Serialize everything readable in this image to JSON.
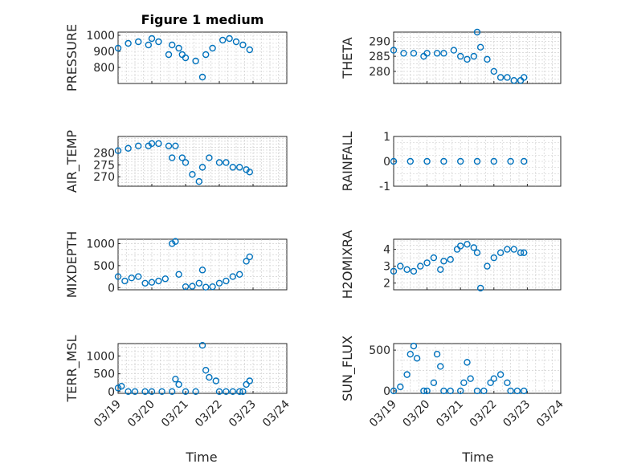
{
  "title": "Figure 1 medium",
  "xlabel": "Time",
  "x_ticks": [
    "03/19",
    "03/20",
    "03/21",
    "03/22",
    "03/23",
    "03/24"
  ],
  "chart_data": [
    {
      "type": "scatter",
      "ylabel": "PRESSURE",
      "yticks": [
        "800",
        "900",
        "1000"
      ],
      "ylim": [
        700,
        1020
      ],
      "xlim": [
        "03/19",
        "03/24"
      ],
      "grid": true,
      "x": [
        0,
        0.3,
        0.6,
        0.9,
        1.0,
        1.2,
        1.5,
        1.6,
        1.8,
        1.9,
        2.0,
        2.3,
        2.5,
        2.6,
        2.8,
        3.1,
        3.3,
        3.5,
        3.7,
        3.9
      ],
      "y": [
        920,
        950,
        960,
        940,
        980,
        960,
        880,
        940,
        920,
        880,
        860,
        840,
        740,
        880,
        920,
        970,
        980,
        960,
        940,
        910
      ]
    },
    {
      "type": "scatter",
      "ylabel": "THETA",
      "yticks": [
        "280",
        "285",
        "290"
      ],
      "ylim": [
        276,
        293
      ],
      "xlim": [
        "03/19",
        "03/24"
      ],
      "grid": true,
      "x": [
        0,
        0.3,
        0.6,
        0.9,
        1.0,
        1.3,
        1.5,
        1.8,
        2.0,
        2.2,
        2.4,
        2.5,
        2.6,
        2.8,
        3.0,
        3.2,
        3.4,
        3.6,
        3.8,
        3.9
      ],
      "y": [
        287,
        286,
        286,
        285,
        286,
        286,
        286,
        287,
        285,
        284,
        285,
        293,
        288,
        284,
        280,
        278,
        278,
        277,
        277,
        278
      ]
    },
    {
      "type": "scatter",
      "ylabel": "AIR_TEMP",
      "yticks": [
        "270",
        "275",
        "280"
      ],
      "ylim": [
        266,
        287
      ],
      "xlim": [
        "03/19",
        "03/24"
      ],
      "grid": true,
      "x": [
        0,
        0.3,
        0.6,
        0.9,
        1.0,
        1.2,
        1.5,
        1.6,
        1.7,
        1.9,
        2.0,
        2.2,
        2.4,
        2.5,
        2.7,
        3.0,
        3.2,
        3.4,
        3.6,
        3.8,
        3.9
      ],
      "y": [
        281,
        282,
        283,
        283,
        284,
        284,
        283,
        278,
        283,
        278,
        276,
        271,
        268,
        274,
        278,
        276,
        276,
        274,
        274,
        273,
        272
      ]
    },
    {
      "type": "scatter",
      "ylabel": "RAINFALL",
      "yticks": [
        "-1",
        "0",
        "1"
      ],
      "ylim": [
        -1,
        1
      ],
      "xlim": [
        "03/19",
        "03/24"
      ],
      "grid": true,
      "x": [
        0,
        0.5,
        1.0,
        1.5,
        2.0,
        2.5,
        3.0,
        3.5,
        3.9
      ],
      "y": [
        0,
        0,
        0,
        0,
        0,
        0,
        0,
        0,
        0
      ]
    },
    {
      "type": "scatter",
      "ylabel": "MIXDEPTH",
      "yticks": [
        "0",
        "500",
        "1000"
      ],
      "ylim": [
        -50,
        1100
      ],
      "xlim": [
        "03/19",
        "03/24"
      ],
      "grid": true,
      "x": [
        0,
        0.2,
        0.4,
        0.6,
        0.8,
        1.0,
        1.2,
        1.4,
        1.6,
        1.7,
        1.8,
        2.0,
        2.2,
        2.4,
        2.5,
        2.6,
        2.8,
        3.0,
        3.2,
        3.4,
        3.6,
        3.8,
        3.9
      ],
      "y": [
        250,
        150,
        220,
        250,
        100,
        120,
        150,
        200,
        1000,
        1050,
        300,
        20,
        30,
        100,
        400,
        10,
        20,
        100,
        150,
        250,
        300,
        600,
        700
      ]
    },
    {
      "type": "scatter",
      "ylabel": "H2OMIXRA",
      "yticks": [
        "2",
        "3",
        "4"
      ],
      "ylim": [
        1.6,
        4.6
      ],
      "xlim": [
        "03/19",
        "03/24"
      ],
      "grid": true,
      "x": [
        0,
        0.2,
        0.4,
        0.6,
        0.8,
        1.0,
        1.2,
        1.4,
        1.5,
        1.7,
        1.9,
        2.0,
        2.2,
        2.4,
        2.5,
        2.6,
        2.8,
        3.0,
        3.2,
        3.4,
        3.6,
        3.8,
        3.9
      ],
      "y": [
        2.7,
        3.0,
        2.8,
        2.7,
        3.0,
        3.2,
        3.5,
        2.8,
        3.3,
        3.4,
        4.0,
        4.2,
        4.3,
        4.1,
        3.8,
        1.7,
        3.0,
        3.5,
        3.8,
        4.0,
        4.0,
        3.8,
        3.8
      ]
    },
    {
      "type": "scatter",
      "ylabel": "TERR_MSL",
      "yticks": [
        "0",
        "500",
        "1000"
      ],
      "ylim": [
        -50,
        1350
      ],
      "xlim": [
        "03/19",
        "03/24"
      ],
      "grid": true,
      "x": [
        0,
        0.1,
        0.3,
        0.5,
        0.8,
        1.0,
        1.3,
        1.6,
        1.7,
        1.8,
        2.0,
        2.3,
        2.5,
        2.6,
        2.7,
        2.9,
        3.0,
        3.2,
        3.4,
        3.6,
        3.7,
        3.8,
        3.9
      ],
      "y": [
        100,
        150,
        0,
        0,
        0,
        0,
        0,
        0,
        350,
        200,
        0,
        0,
        1300,
        600,
        400,
        300,
        0,
        0,
        0,
        0,
        0,
        200,
        300
      ]
    },
    {
      "type": "scatter",
      "ylabel": "SUN_FLUX",
      "yticks": [
        "0",
        "500"
      ],
      "ylim": [
        -30,
        580
      ],
      "xlim": [
        "03/19",
        "03/24"
      ],
      "grid": true,
      "x": [
        0,
        0.2,
        0.4,
        0.5,
        0.6,
        0.7,
        0.9,
        1.0,
        1.2,
        1.3,
        1.4,
        1.5,
        1.7,
        2.0,
        2.1,
        2.2,
        2.3,
        2.5,
        2.7,
        2.9,
        3.0,
        3.2,
        3.4,
        3.5,
        3.7,
        3.9
      ],
      "y": [
        0,
        50,
        200,
        450,
        550,
        400,
        0,
        0,
        100,
        450,
        300,
        0,
        0,
        0,
        100,
        350,
        150,
        0,
        0,
        100,
        150,
        200,
        100,
        0,
        0,
        0
      ]
    }
  ]
}
